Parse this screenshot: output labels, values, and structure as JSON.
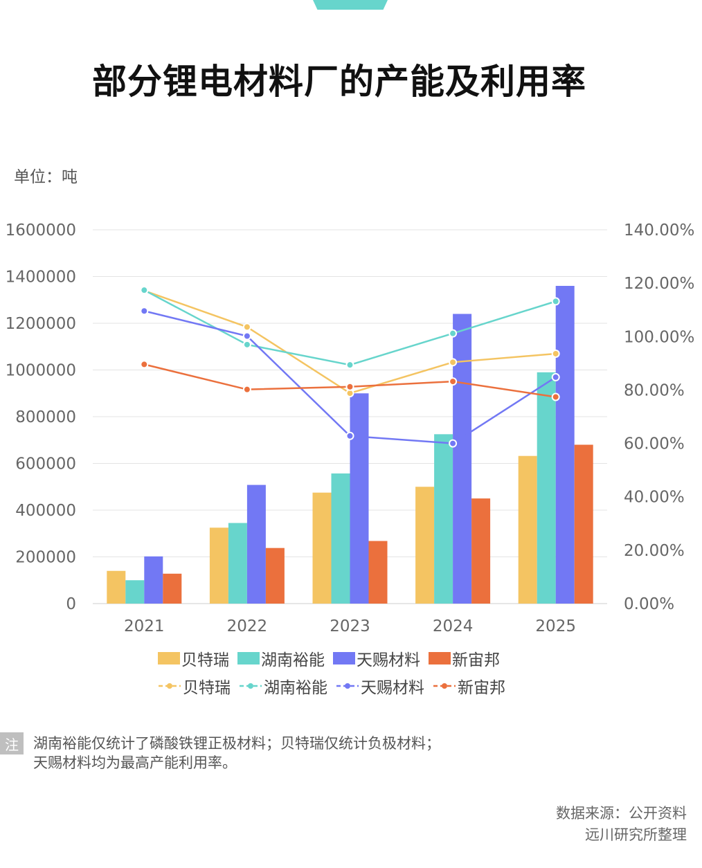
{
  "title": "部分锂电材料厂的产能及利用率",
  "unit_label": "单位：吨",
  "chart_data": {
    "type": "bar",
    "categories": [
      "2021",
      "2022",
      "2023",
      "2024",
      "2025"
    ],
    "ylim": [
      0,
      1600000
    ],
    "yticks": [
      "0",
      "200000",
      "400000",
      "600000",
      "800000",
      "1000000",
      "1200000",
      "1400000",
      "1600000"
    ],
    "y2lim": [
      0,
      140
    ],
    "y2ticks": [
      "0.00%",
      "20.00%",
      "40.00%",
      "60.00%",
      "80.00%",
      "100.00%",
      "120.00%",
      "140.00%"
    ],
    "grid": true,
    "bar_series": [
      {
        "name": "贝特瑞",
        "color": "#f4c462",
        "values": [
          140000,
          325000,
          475000,
          500000,
          632000
        ]
      },
      {
        "name": "湖南裕能",
        "color": "#67d5cc",
        "values": [
          100000,
          345000,
          557000,
          725000,
          990000
        ]
      },
      {
        "name": "天赐材料",
        "color": "#7278f4",
        "values": [
          202000,
          508000,
          900000,
          1240000,
          1360000
        ]
      },
      {
        "name": "新宙邦",
        "color": "#eb703d",
        "values": [
          128000,
          238000,
          268000,
          450000,
          680000
        ]
      }
    ],
    "line_series": [
      {
        "name": "贝特瑞",
        "color": "#f4c462",
        "values": [
          117.2,
          103.6,
          78.8,
          90.4,
          93.6
        ]
      },
      {
        "name": "湖南裕能",
        "color": "#67d5cc",
        "values": [
          117.4,
          97.0,
          89.4,
          101.2,
          113.2
        ]
      },
      {
        "name": "天赐材料",
        "color": "#7278f4",
        "values": [
          109.6,
          100.2,
          62.8,
          60.0,
          84.8
        ]
      },
      {
        "name": "新宙邦",
        "color": "#eb703d",
        "values": [
          89.6,
          80.2,
          81.2,
          83.2,
          77.4
        ]
      }
    ]
  },
  "legend": {
    "bars": [
      "贝特瑞",
      "湖南裕能",
      "天赐材料",
      "新宙邦"
    ],
    "lines": [
      "贝特瑞",
      "湖南裕能",
      "天赐材料",
      "新宙邦"
    ]
  },
  "note": {
    "badge": "注",
    "line1": "湖南裕能仅统计了磷酸铁锂正极材料；贝特瑞仅统计负极材料；",
    "line2": "天赐材料均为最高产能利用率。"
  },
  "source": {
    "line1": "数据来源：公开资料",
    "line2": "远川研究所整理"
  }
}
